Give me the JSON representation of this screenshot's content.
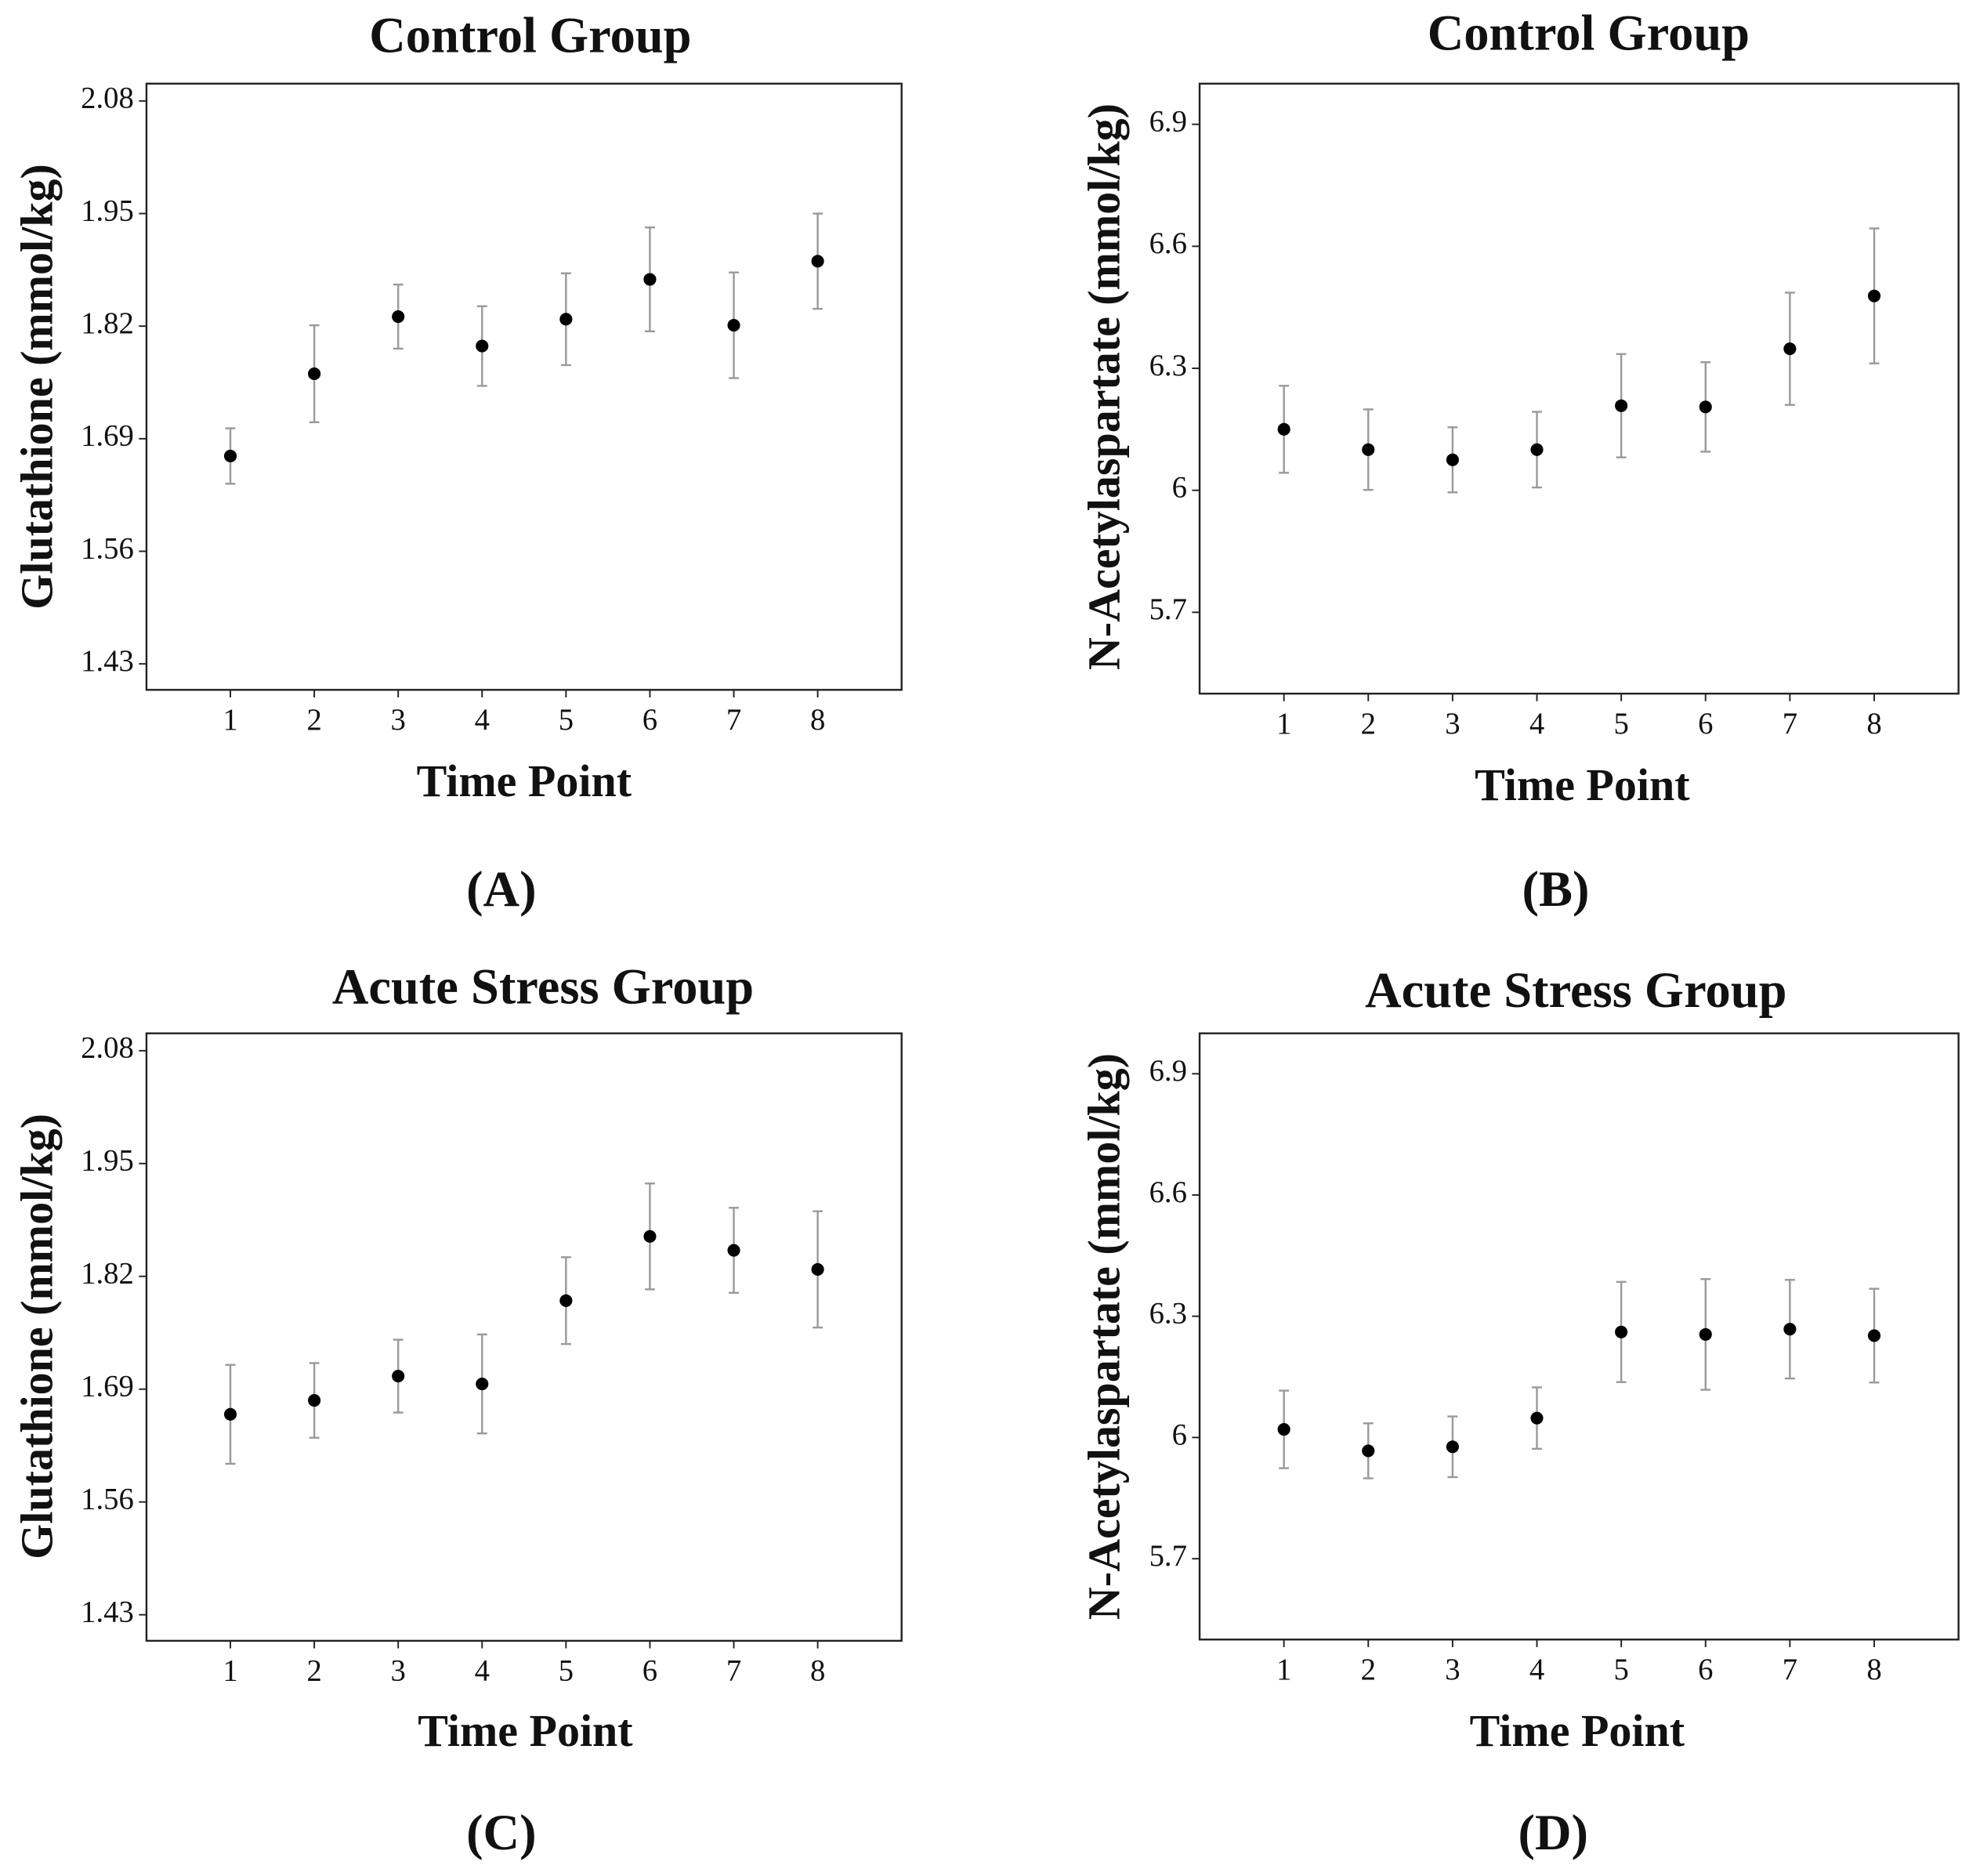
{
  "chart_data": [
    {
      "type": "scatter",
      "title": "Control Group",
      "panel_label": "(A)",
      "x_label": "Time Point",
      "y_label": "Glutathione (mmol/kg)",
      "x": [
        1,
        2,
        3,
        4,
        5,
        6,
        7,
        8
      ],
      "series": [
        {
          "color": "#000000",
          "error_color": "#9a9a9a",
          "values": [
            1.67,
            1.765,
            1.831,
            1.797,
            1.828,
            1.874,
            1.821,
            1.895
          ],
          "errors": [
            0.032,
            0.056,
            0.037,
            0.046,
            0.053,
            0.06,
            0.061,
            0.055
          ]
        }
      ],
      "xlim": [
        0,
        9
      ],
      "xticks": [
        1,
        2,
        3,
        4,
        5,
        6,
        7,
        8
      ],
      "ylim": [
        1.4,
        2.1
      ],
      "yticks": [
        1.43,
        1.56,
        1.69,
        1.82,
        1.95,
        2.08
      ]
    },
    {
      "type": "scatter",
      "title": "Control Group",
      "panel_label": "(B)",
      "x_label": "Time Point",
      "y_label": "N-Acetylaspartate (mmol/kg)",
      "x": [
        1,
        2,
        3,
        4,
        5,
        6,
        7,
        8
      ],
      "series": [
        {
          "color": "#000000",
          "error_color": "#9a9a9a",
          "values": [
            6.15,
            6.1,
            6.075,
            6.1,
            6.208,
            6.205,
            6.348,
            6.478
          ],
          "errors": [
            0.107,
            0.099,
            0.08,
            0.093,
            0.127,
            0.11,
            0.138,
            0.166
          ]
        }
      ],
      "xlim": [
        0,
        9
      ],
      "xticks": [
        1,
        2,
        3,
        4,
        5,
        6,
        7,
        8
      ],
      "ylim": [
        5.5,
        7.0
      ],
      "yticks": [
        5.7,
        6.0,
        6.3,
        6.6,
        6.9
      ]
    },
    {
      "type": "scatter",
      "title": "Acute Stress Group",
      "panel_label": "(C)",
      "x_label": "Time Point",
      "y_label": "Glutathione (mmol/kg)",
      "x": [
        1,
        2,
        3,
        4,
        5,
        6,
        7,
        8
      ],
      "series": [
        {
          "color": "#000000",
          "error_color": "#9a9a9a",
          "values": [
            1.661,
            1.677,
            1.705,
            1.696,
            1.792,
            1.866,
            1.85,
            1.828
          ],
          "errors": [
            0.057,
            0.043,
            0.042,
            0.057,
            0.05,
            0.061,
            0.049,
            0.067
          ]
        }
      ],
      "xlim": [
        0,
        9
      ],
      "xticks": [
        1,
        2,
        3,
        4,
        5,
        6,
        7,
        8
      ],
      "ylim": [
        1.4,
        2.1
      ],
      "yticks": [
        1.43,
        1.56,
        1.69,
        1.82,
        1.95,
        2.08
      ]
    },
    {
      "type": "scatter",
      "title": "Acute Stress Group",
      "panel_label": "(D)",
      "x_label": "Time Point",
      "y_label": "N-Acetylaspartate (mmol/kg)",
      "x": [
        1,
        2,
        3,
        4,
        5,
        6,
        7,
        8
      ],
      "series": [
        {
          "color": "#000000",
          "error_color": "#9a9a9a",
          "values": [
            6.02,
            5.967,
            5.977,
            6.048,
            6.261,
            6.255,
            6.268,
            6.252
          ],
          "errors": [
            0.096,
            0.068,
            0.075,
            0.076,
            0.124,
            0.137,
            0.122,
            0.116
          ]
        }
      ],
      "xlim": [
        0,
        9
      ],
      "xticks": [
        1,
        2,
        3,
        4,
        5,
        6,
        7,
        8
      ],
      "ylim": [
        5.5,
        7.0
      ],
      "yticks": [
        5.7,
        6.0,
        6.3,
        6.6,
        6.9
      ]
    }
  ]
}
